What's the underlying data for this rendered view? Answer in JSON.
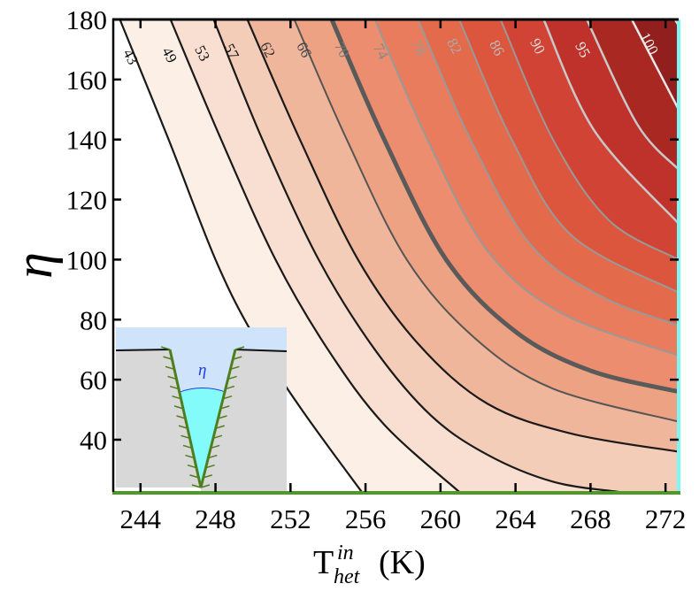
{
  "chart_data": {
    "type": "contour",
    "title": "",
    "xlabel": "T_het^in (K)",
    "xlabel_parts": {
      "base": "T",
      "superscript": "in",
      "subscript": "het",
      "unit": "(K)"
    },
    "ylabel": "η",
    "xlim": [
      242.5,
      272.7
    ],
    "ylim": [
      22.6,
      180
    ],
    "x_ticks": [
      244,
      248,
      252,
      256,
      260,
      264,
      268,
      272
    ],
    "y_ticks": [
      40,
      60,
      80,
      100,
      120,
      140,
      160,
      180
    ],
    "grid": false,
    "contour_levels": [
      43,
      49,
      53,
      57,
      62,
      66,
      70,
      74,
      78,
      82,
      86,
      90,
      95,
      100
    ],
    "highlighted_level": 66,
    "contours": [
      {
        "level": 43,
        "points": [
          [
            242.9,
            180
          ],
          [
            245.5,
            140
          ],
          [
            248.0,
            100
          ],
          [
            250.0,
            75
          ],
          [
            252.6,
            50
          ],
          [
            255.8,
            22.6
          ]
        ]
      },
      {
        "level": 49,
        "points": [
          [
            245.6,
            180
          ],
          [
            248.3,
            140
          ],
          [
            251.2,
            100
          ],
          [
            254.0,
            70
          ],
          [
            257.0,
            45
          ],
          [
            261.0,
            22.6
          ]
        ]
      },
      {
        "level": 53,
        "points": [
          [
            247.9,
            180
          ],
          [
            250.5,
            140
          ],
          [
            253.5,
            100
          ],
          [
            256.5,
            70
          ],
          [
            259.5,
            48
          ],
          [
            262.5,
            35
          ],
          [
            266.0,
            26
          ],
          [
            269.5,
            22.6
          ]
        ]
      },
      {
        "level": 57,
        "points": [
          [
            249.7,
            180
          ],
          [
            252.5,
            140
          ],
          [
            255.6,
            100
          ],
          [
            258.8,
            72
          ],
          [
            262.5,
            52
          ],
          [
            267.0,
            42
          ],
          [
            272.7,
            36
          ]
        ]
      },
      {
        "level": 62,
        "points": [
          [
            252.2,
            180
          ],
          [
            255.0,
            140
          ],
          [
            258.2,
            100
          ],
          [
            261.8,
            74
          ],
          [
            266.0,
            57
          ],
          [
            272.7,
            46
          ]
        ]
      },
      {
        "level": 66,
        "points": [
          [
            254.2,
            180
          ],
          [
            257.0,
            140
          ],
          [
            260.3,
            100
          ],
          [
            264.0,
            76
          ],
          [
            268.0,
            63
          ],
          [
            272.7,
            56
          ]
        ]
      },
      {
        "level": 70,
        "points": [
          [
            256.5,
            180
          ],
          [
            259.3,
            140
          ],
          [
            262.5,
            103
          ],
          [
            266.5,
            82
          ],
          [
            272.7,
            68
          ]
        ]
      },
      {
        "level": 74,
        "points": [
          [
            258.8,
            180
          ],
          [
            261.6,
            140
          ],
          [
            264.8,
            105
          ],
          [
            268.5,
            88
          ],
          [
            272.7,
            78
          ]
        ]
      },
      {
        "level": 78,
        "points": [
          [
            261.0,
            180
          ],
          [
            263.8,
            140
          ],
          [
            267.0,
            108
          ],
          [
            272.7,
            89
          ]
        ]
      },
      {
        "level": 82,
        "points": [
          [
            263.2,
            180
          ],
          [
            266.0,
            140
          ],
          [
            269.0,
            113
          ],
          [
            272.7,
            100
          ]
        ]
      },
      {
        "level": 86,
        "points": [
          [
            265.5,
            180
          ],
          [
            268.2,
            143
          ],
          [
            272.7,
            112
          ]
        ]
      },
      {
        "level": 90,
        "points": [
          [
            267.8,
            180
          ],
          [
            270.5,
            145
          ],
          [
            272.7,
            130
          ]
        ]
      },
      {
        "level": 95,
        "points": [
          [
            270.2,
            180
          ],
          [
            272.7,
            150
          ]
        ]
      },
      {
        "level": 100,
        "points": [
          [
            272.5,
            180
          ],
          [
            272.7,
            178
          ]
        ]
      }
    ],
    "fill_colors": [
      "#ffffff",
      "#fcefe6",
      "#f9dfd2",
      "#f4cdb9",
      "#f0b69c",
      "#eca283",
      "#eb8d6e",
      "#e97c5d",
      "#e36a4b",
      "#dc563e",
      "#d14335",
      "#bf322b",
      "#a92822",
      "#901f1e",
      "#731616"
    ],
    "line_colors": {
      "dark": "#1a1a1a",
      "mid": "#555555",
      "light": "#999999",
      "lighter": "#c8c8c8",
      "highlight": "#5a5a5a"
    },
    "boundaries": {
      "bottom_color": "#4e9a28",
      "right_color": "#7ff6f6"
    },
    "inset": {
      "description": "V-shaped groove (pore) in a gray substrate partially filled with liquid; opening angle η marked",
      "angle_label": "η",
      "colors": {
        "vapor": "#cfe3fa",
        "substrate": "#d8d8d8",
        "liquid": "#83fbfa",
        "wall": "#4f7e1e",
        "angle_arc": "#1f3fe0",
        "surface": "#111111"
      }
    }
  }
}
